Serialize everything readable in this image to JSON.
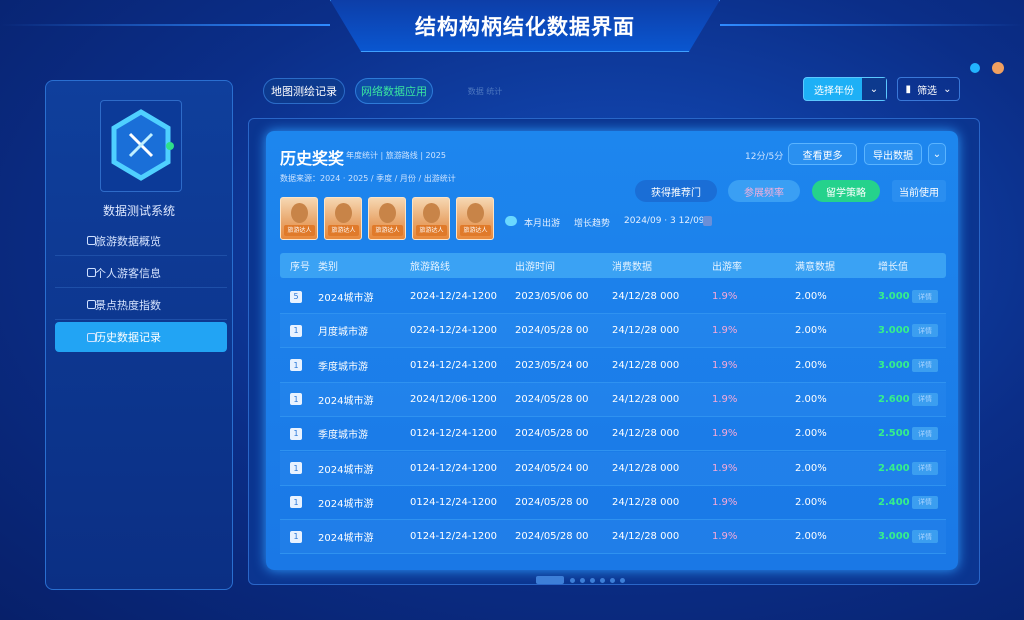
{
  "app": {
    "title": "结构构柄结化数据界面"
  },
  "sidebar": {
    "logo_label": "数据测试系统",
    "items": [
      {
        "label": "旅游数据概览",
        "icon": "square-icon",
        "active": false
      },
      {
        "label": "个人游客信息",
        "icon": "square-icon",
        "active": false
      },
      {
        "label": "景点热度指数",
        "icon": "gallery-icon",
        "active": false
      },
      {
        "label": "历史数据记录",
        "icon": "square-icon",
        "active": true
      }
    ]
  },
  "topbar": {
    "tabs": [
      {
        "label": "地图测绘记录"
      },
      {
        "label": "网络数据应用"
      },
      {
        "label": "数据 统计"
      }
    ],
    "dropdown": {
      "label": "选择年份"
    },
    "filter": {
      "label": "筛选"
    },
    "status_colors": [
      "#22b4ff",
      "#f0a060"
    ]
  },
  "panel": {
    "title": "历史奖奖",
    "subtitle": "年度统计 | 旅游路线 | 2025",
    "meta": "数据来源：2024 · 2025 / 季度 / 月份 / 出游统计",
    "count": "12分/5分",
    "top_buttons": [
      {
        "label": "查看更多"
      },
      {
        "label": "导出数据"
      }
    ],
    "actions": [
      {
        "label": "获得推荐门"
      },
      {
        "label": "参展频率"
      },
      {
        "label": "留学策略"
      },
      {
        "label": "当前使用"
      }
    ],
    "thumb_labels": [
      "旅游达人",
      "旅游达人",
      "旅游达人",
      "旅游达人",
      "旅游达人"
    ],
    "legend": [
      "本月出游",
      "增长趋势",
      "2024/09 · 3 12/09"
    ],
    "columns": [
      "序号",
      "类别",
      "旅游路线",
      "出游时间",
      "消费数据",
      "出游率",
      "满意数据",
      "增长值"
    ],
    "rows": [
      {
        "idx": "5",
        "name": "2024城市游",
        "route": "2024-12/24-1200",
        "time": "2023/05/06 00",
        "spend": "24/12/28 000",
        "rate": "1.9%",
        "sat": "2.00%",
        "grow": "3.000",
        "tag": "详情"
      },
      {
        "idx": "1",
        "name": "月度城市游",
        "route": "0224-12/24-1200",
        "time": "2024/05/28 00",
        "spend": "24/12/28 000",
        "rate": "1.9%",
        "sat": "2.00%",
        "grow": "3.000",
        "tag": "详情"
      },
      {
        "idx": "1",
        "name": "季度城市游",
        "route": "0124-12/24-1200",
        "time": "2023/05/24 00",
        "spend": "24/12/28 000",
        "rate": "1.9%",
        "sat": "2.00%",
        "grow": "3.000",
        "tag": "详情"
      },
      {
        "idx": "1",
        "name": "2024城市游",
        "route": "2024/12/06-1200",
        "time": "2024/05/28 00",
        "spend": "24/12/28 000",
        "rate": "1.9%",
        "sat": "2.00%",
        "grow": "2.600",
        "tag": "详情"
      },
      {
        "idx": "1",
        "name": "季度城市游",
        "route": "0124-12/24-1200",
        "time": "2024/05/28 00",
        "spend": "24/12/28 000",
        "rate": "1.9%",
        "sat": "2.00%",
        "grow": "2.500",
        "tag": "详情"
      },
      {
        "idx": "1",
        "name": "2024城市游",
        "route": "0124-12/24-1200",
        "time": "2024/05/24 00",
        "spend": "24/12/28 000",
        "rate": "1.9%",
        "sat": "2.00%",
        "grow": "2.400",
        "tag": "详情"
      },
      {
        "idx": "1",
        "name": "2024城市游",
        "route": "0124-12/24-1200",
        "time": "2024/05/28 00",
        "spend": "24/12/28 000",
        "rate": "1.9%",
        "sat": "2.00%",
        "grow": "2.400",
        "tag": "详情"
      },
      {
        "idx": "1",
        "name": "2024城市游",
        "route": "0124-12/24-1200",
        "time": "2024/05/28 00",
        "spend": "24/12/28 000",
        "rate": "1.9%",
        "sat": "2.00%",
        "grow": "3.000",
        "tag": "详情"
      }
    ]
  }
}
